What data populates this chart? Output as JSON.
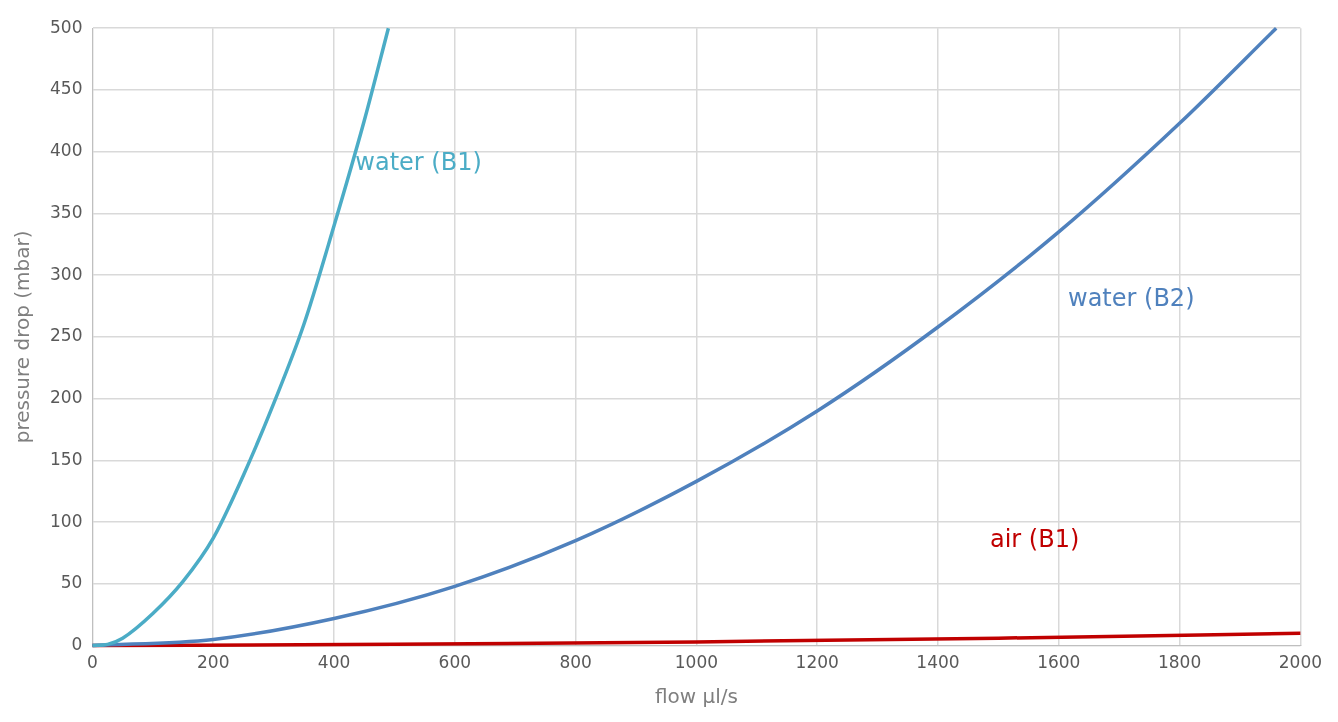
{
  "chart_data": {
    "type": "line",
    "xlabel": "flow µl/s",
    "ylabel": "pressure drop (mbar)",
    "xlim": [
      0,
      2000
    ],
    "xticks": [
      0,
      200,
      400,
      600,
      800,
      1000,
      1200,
      1400,
      1600,
      1800,
      2000
    ],
    "ylim": [
      0,
      500
    ],
    "yticks": [
      0,
      50,
      100,
      150,
      200,
      250,
      300,
      350,
      400,
      450,
      500
    ],
    "grid": true,
    "marker": "none",
    "line_style": "solid",
    "series": [
      {
        "name": "water (B1)",
        "color": "#4bacc6",
        "x": [
          0,
          25,
          50,
          100,
          150,
          200,
          250,
          300,
          350,
          400,
          450,
          490
        ],
        "values": [
          0,
          1,
          6,
          26,
          52,
          87,
          138,
          196,
          260,
          340,
          425,
          500
        ]
      },
      {
        "name": "water (B2)",
        "color": "#4f81bd",
        "x": [
          0,
          200,
          400,
          600,
          800,
          1000,
          1200,
          1400,
          1600,
          1800,
          1960
        ],
        "values": [
          0,
          5,
          22,
          48,
          85,
          133,
          190,
          258,
          335,
          423,
          500
        ]
      },
      {
        "name": "air (B1)",
        "color": "#c00000",
        "x": [
          0,
          500,
          1000,
          1500,
          2000
        ],
        "values": [
          0,
          1,
          3,
          6,
          10
        ]
      }
    ]
  }
}
